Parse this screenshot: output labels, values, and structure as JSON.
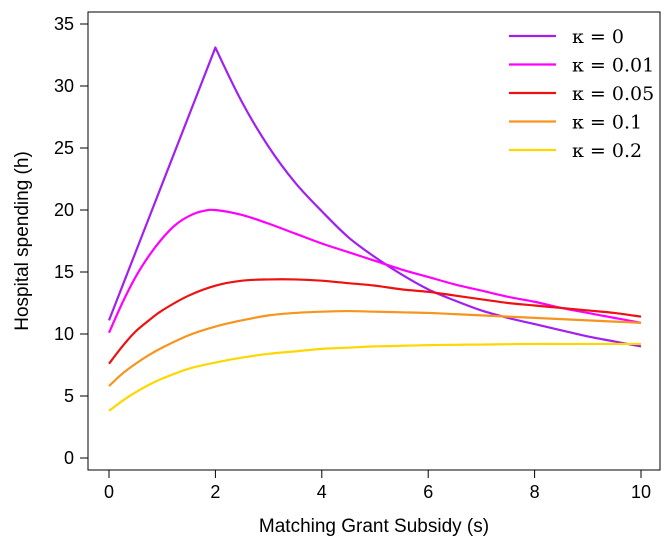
{
  "chart_data": {
    "type": "line",
    "title": "",
    "xlabel": "Matching Grant Subsidy (s)",
    "ylabel": "Hospital spending (h)",
    "xlim": [
      0,
      10
    ],
    "ylim": [
      0,
      35
    ],
    "xticks": [
      "0",
      "2",
      "4",
      "6",
      "8",
      "10"
    ],
    "yticks": [
      "0",
      "5",
      "10",
      "15",
      "20",
      "25",
      "30",
      "35"
    ],
    "grid": false,
    "legend": "top-right",
    "series": [
      {
        "name": "κ = 0",
        "color": "#A020F0",
        "x": [
          0,
          0.5,
          1,
          1.5,
          2,
          2.5,
          3,
          3.5,
          4,
          4.5,
          5,
          5.5,
          6,
          6.5,
          7,
          7.5,
          8,
          8.5,
          9,
          9.5,
          10
        ],
        "y": [
          11.1,
          16.6,
          22.1,
          27.6,
          33.1,
          28.7,
          25.1,
          22.2,
          19.9,
          17.8,
          16.2,
          14.8,
          13.6,
          12.7,
          11.9,
          11.3,
          10.8,
          10.3,
          9.8,
          9.4,
          9.0
        ]
      },
      {
        "name": "κ = 0.01",
        "color": "#FF00FF",
        "x": [
          0,
          0.25,
          0.5,
          0.75,
          1,
          1.25,
          1.5,
          1.75,
          2,
          2.5,
          3,
          3.5,
          4,
          4.5,
          5,
          5.5,
          6,
          6.5,
          7,
          7.5,
          8,
          8.5,
          9,
          9.5,
          10
        ],
        "y": [
          10.1,
          12.5,
          14.6,
          16.3,
          17.7,
          18.8,
          19.5,
          19.9,
          20.0,
          19.6,
          18.9,
          18.1,
          17.3,
          16.6,
          15.9,
          15.2,
          14.6,
          14.0,
          13.5,
          13.0,
          12.6,
          12.1,
          11.7,
          11.3,
          10.9
        ]
      },
      {
        "name": "κ = 0.05",
        "color": "#EE1111",
        "x": [
          0,
          0.25,
          0.5,
          0.75,
          1,
          1.5,
          2,
          2.5,
          3,
          3.5,
          4,
          4.5,
          5,
          5.5,
          6,
          6.5,
          7,
          7.5,
          8,
          8.5,
          9,
          9.5,
          10
        ],
        "y": [
          7.6,
          9.0,
          10.2,
          11.1,
          11.9,
          13.1,
          13.9,
          14.3,
          14.4,
          14.4,
          14.3,
          14.1,
          13.9,
          13.6,
          13.4,
          13.1,
          12.8,
          12.5,
          12.3,
          12.1,
          11.9,
          11.7,
          11.4
        ]
      },
      {
        "name": "κ = 0.1",
        "color": "#F7941D",
        "x": [
          0,
          0.25,
          0.5,
          0.75,
          1,
          1.5,
          2,
          2.5,
          3,
          3.5,
          4,
          4.5,
          5,
          5.5,
          6,
          6.5,
          7,
          7.5,
          8,
          8.5,
          9,
          9.5,
          10
        ],
        "y": [
          5.8,
          6.8,
          7.6,
          8.3,
          8.9,
          9.9,
          10.6,
          11.1,
          11.5,
          11.7,
          11.8,
          11.85,
          11.8,
          11.75,
          11.7,
          11.6,
          11.5,
          11.4,
          11.3,
          11.2,
          11.1,
          11.0,
          10.9
        ]
      },
      {
        "name": "κ = 0.2",
        "color": "#FFD700",
        "x": [
          0,
          0.25,
          0.5,
          0.75,
          1,
          1.5,
          2,
          2.5,
          3,
          3.5,
          4,
          4.5,
          5,
          5.5,
          6,
          6.5,
          7,
          7.5,
          8,
          8.5,
          9,
          9.5,
          10
        ],
        "y": [
          3.8,
          4.6,
          5.3,
          5.9,
          6.4,
          7.2,
          7.7,
          8.1,
          8.4,
          8.6,
          8.8,
          8.9,
          9.0,
          9.05,
          9.1,
          9.13,
          9.15,
          9.18,
          9.2,
          9.2,
          9.2,
          9.2,
          9.2
        ]
      }
    ]
  }
}
